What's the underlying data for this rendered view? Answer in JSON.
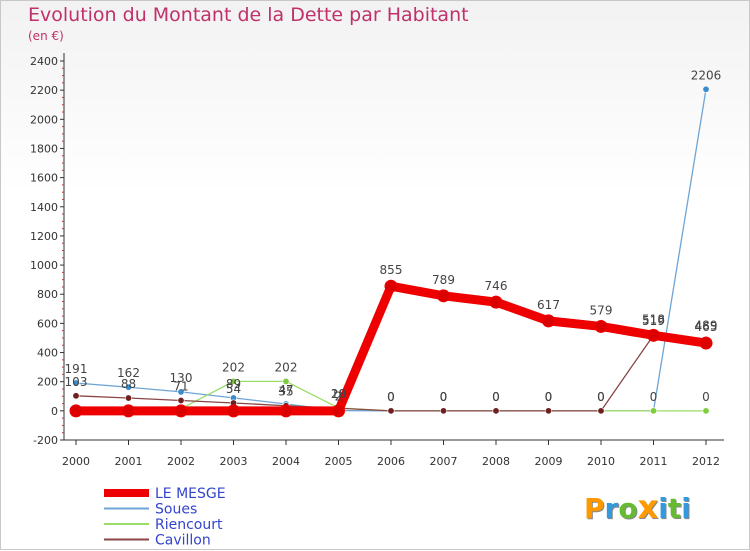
{
  "chart_data": {
    "type": "line",
    "title": "Evolution du Montant de la Dette par Habitant",
    "unit_label": "(en €)",
    "xlabel": "",
    "ylabel": "",
    "categories": [
      "2000",
      "2001",
      "2002",
      "2003",
      "2004",
      "2005",
      "2006",
      "2007",
      "2008",
      "2009",
      "2010",
      "2011",
      "2012"
    ],
    "ylim": [
      -200,
      2400
    ],
    "yticks": [
      -200,
      0,
      200,
      400,
      600,
      800,
      1000,
      1200,
      1400,
      1600,
      1800,
      2000,
      2200,
      2400
    ],
    "grid": false,
    "legend_position": "bottom-left",
    "series": [
      {
        "name": "Soues",
        "color": "#6fa5d6",
        "marker_color": "#3a8ccc",
        "values": [
          191,
          162,
          130,
          89,
          47,
          2,
          0,
          0,
          0,
          0,
          0,
          0,
          2206
        ]
      },
      {
        "name": "Riencourt",
        "color": "#99dd66",
        "marker_color": "#7fcc3f",
        "values": [
          15,
          15,
          15,
          202,
          202,
          20,
          0,
          0,
          0,
          0,
          0,
          0,
          0
        ]
      },
      {
        "name": "Cavillon",
        "color": "#8a4545",
        "marker_color": "#6e1f1f",
        "values": [
          103,
          88,
          71,
          54,
          35,
          18,
          0,
          0,
          0,
          0,
          0,
          519,
          489
        ]
      },
      {
        "name": "LE MESGE",
        "color": "#ee0000",
        "marker_color": "#dd0000",
        "values": [
          0,
          0,
          0,
          0,
          0,
          0,
          855,
          789,
          746,
          617,
          579,
          518,
          465
        ]
      }
    ],
    "data_labels": {
      "Soues": [
        "191",
        "162",
        "130",
        "89",
        "47",
        "2",
        "0",
        "0",
        "0",
        "0",
        "0",
        "0",
        "2206"
      ],
      "Riencourt": [
        "",
        "",
        "",
        "202",
        "202",
        "20",
        "",
        "",
        "",
        "",
        "",
        "",
        "0"
      ],
      "Cavillon": [
        "103",
        "88",
        "71",
        "54",
        "35",
        "18",
        "0",
        "0",
        "0",
        "0",
        "0",
        "519",
        "489"
      ],
      "LE MESGE": [
        "",
        "",
        "",
        "",
        "",
        "",
        "855",
        "789",
        "746",
        "617",
        "579",
        "518",
        "465"
      ]
    },
    "legend": [
      "LE MESGE",
      "Soues",
      "Riencourt",
      "Cavillon"
    ]
  },
  "logo": {
    "letters": [
      "P",
      "r",
      "o",
      "x",
      "i",
      "t",
      "i"
    ],
    "colors": [
      "#ff9900",
      "#3399dd",
      "#66bb33",
      "#ff9900",
      "#3399dd",
      "#66bb33",
      "#3399dd"
    ]
  },
  "colors": {
    "title": "#c0306a",
    "axis": "#333333",
    "tick_label": "#333333",
    "legend_text": "#3344cc"
  }
}
